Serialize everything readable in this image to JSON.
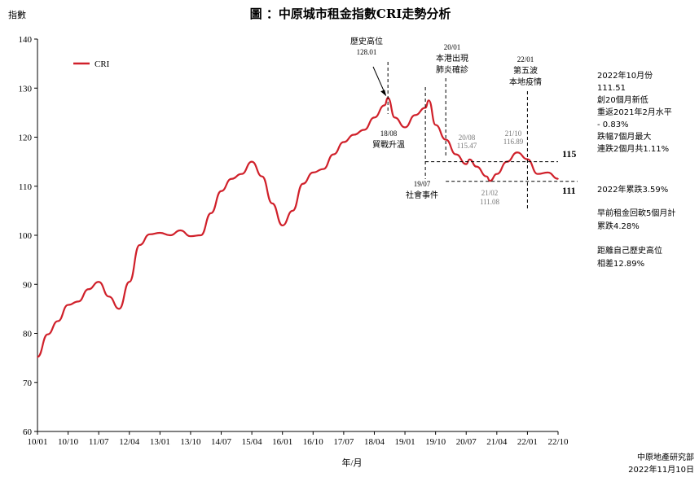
{
  "chart_data": {
    "type": "line",
    "title": "圖 ：中原城市租金指數CRI走勢分析",
    "ylabel": "指數",
    "xlabel": "年/月",
    "ylim": [
      60,
      140
    ],
    "yticks": [
      60,
      70,
      80,
      90,
      100,
      110,
      120,
      130,
      140
    ],
    "xticks": [
      "10/01",
      "10/10",
      "11/07",
      "12/04",
      "13/01",
      "13/10",
      "14/07",
      "15/04",
      "16/01",
      "16/10",
      "17/07",
      "18/04",
      "19/01",
      "19/10",
      "20/07",
      "21/04",
      "22/01",
      "22/10"
    ],
    "legend": "top-left",
    "series": [
      {
        "name": "CRI",
        "color": "#d0202a",
        "x": [
          "10/01",
          "10/04",
          "10/07",
          "10/10",
          "11/01",
          "11/04",
          "11/07",
          "11/10",
          "12/01",
          "12/04",
          "12/07",
          "12/10",
          "13/01",
          "13/04",
          "13/07",
          "13/10",
          "14/01",
          "14/04",
          "14/07",
          "14/10",
          "15/01",
          "15/04",
          "15/07",
          "15/10",
          "16/01",
          "16/04",
          "16/07",
          "16/10",
          "17/01",
          "17/04",
          "17/07",
          "17/10",
          "18/01",
          "18/04",
          "18/07",
          "18/08",
          "18/10",
          "19/01",
          "19/04",
          "19/07",
          "19/08",
          "19/10",
          "20/01",
          "20/04",
          "20/07",
          "20/08",
          "20/10",
          "21/01",
          "21/02",
          "21/04",
          "21/07",
          "21/10",
          "22/01",
          "22/04",
          "22/07",
          "22/10"
        ],
        "values": [
          75.2,
          79.8,
          82.5,
          85.8,
          86.5,
          89.0,
          90.5,
          87.5,
          85.0,
          90.5,
          98.0,
          100.2,
          100.5,
          100.0,
          101.0,
          99.8,
          100.0,
          104.5,
          109.0,
          111.5,
          112.5,
          115.0,
          112.0,
          106.5,
          102.0,
          105.0,
          110.5,
          112.8,
          113.5,
          116.5,
          119.0,
          120.5,
          121.5,
          124.0,
          126.5,
          128.01,
          124.0,
          122.0,
          124.5,
          126.0,
          127.5,
          122.5,
          119.5,
          116.5,
          114.5,
          115.47,
          114.0,
          112.0,
          111.08,
          112.5,
          115.0,
          116.89,
          115.5,
          112.5,
          112.8,
          111.51
        ]
      }
    ],
    "annotations": {
      "peak_title": "歷史高位",
      "peak_value": "128.01",
      "a1808_date": "18/08",
      "a1808_text": "貿戰升溫",
      "a2001_date": "20/01",
      "a2001_l1": "本港出現",
      "a2001_l2": "肺炎確診",
      "a2201_date": "22/01",
      "a2201_l1": "第五波",
      "a2201_l2": "本地疫情",
      "a1907_date": "19/07",
      "a1907_text": "社會事件",
      "a2008_date": "20/08",
      "a2008_val": "115.47",
      "a2110_date": "21/10",
      "a2110_val": "116.89",
      "a2102_date": "21/02",
      "a2102_val": "111.08",
      "level_115": "115",
      "level_111": "111"
    },
    "side_notes": {
      "n1": "2022年10月份",
      "n2": "111.51",
      "n3": "創20個月新低",
      "n4": "重返2021年2月水平",
      "n5": "- 0.83%",
      "n6": "跌幅7個月最大",
      "n7": "連跌2個月共1.11%",
      "n8": "2022年累跌3.59%",
      "n9": "早前租金回軟5個月計",
      "n10": "累跌4.28%",
      "n11": "距離自己歷史高位",
      "n12": "相差12.89%"
    },
    "source": "中原地產研究部",
    "date": "2022年11月10日"
  }
}
